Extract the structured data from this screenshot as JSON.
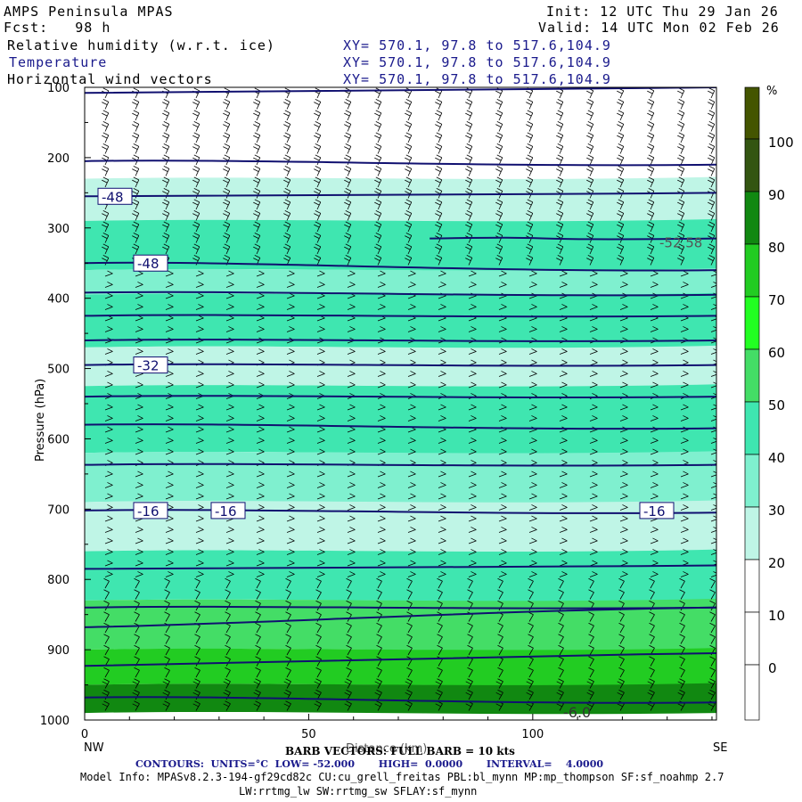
{
  "header": {
    "model": "AMPS Peninsula MPAS",
    "init": "Init: 12 UTC Thu 29 Jan 26",
    "fcst": "Fcst:   98 h",
    "valid": "Valid: 14 UTC Mon 02 Feb 26",
    "field1": "Relative humidity (w.r.t. ice)",
    "field2": "Temperature",
    "field3": "Horizontal wind vectors",
    "xy1": "XY= 570.1, 97.8 to 517.6,104.9",
    "xy2": "XY= 570.1, 97.8 to 517.6,104.9",
    "xy3": "XY= 570.1, 97.8 to 517.6,104.9"
  },
  "footer": {
    "barb": "BARB VECTORS: FULL BARB = 10 kts",
    "xlabel_overlap": "Distance (km)",
    "contours": "CONTOURS:  UNITS=°C  LOW= -52.000       HIGH=  0.0000       INTERVAL=    4.0000",
    "model_info": "Model Info: MPASv8.2.3-194-gf29cd82c CU:cu_grell_freitas PBL:bl_mynn MP:mp_thompson SF:sf_noahmp 2.7",
    "model_info2": "LW:rrtmg_lw SW:rrtmg_sw SFLAY:sf_mynn",
    "left_end": "NW",
    "right_end": "SE"
  },
  "chart_data": {
    "type": "heatmap",
    "ylabel": "Pressure (hPa)",
    "xlabel": "Distance (km)",
    "xlim": [
      0,
      141
    ],
    "ylim": [
      1000,
      100
    ],
    "xticks": [
      0,
      50,
      100
    ],
    "yticks": [
      100,
      200,
      300,
      400,
      500,
      600,
      700,
      800,
      900,
      1000
    ],
    "colorbar": {
      "unit": "%",
      "levels": [
        0,
        10,
        20,
        30,
        40,
        50,
        60,
        70,
        80,
        90,
        100
      ],
      "colors": [
        "#ffffff",
        "#ffffff",
        "#ffffff",
        "#bff5e6",
        "#7ff0cf",
        "#3fe6b0",
        "#44dd66",
        "#22ff22",
        "#22cc22",
        "#118811",
        "#335511",
        "#445500"
      ]
    },
    "rh_layers": [
      {
        "p_top": 100,
        "p_bot": 230,
        "rh": 15
      },
      {
        "p_top": 230,
        "p_bot": 290,
        "rh": 25
      },
      {
        "p_top": 290,
        "p_bot": 360,
        "rh": 48
      },
      {
        "p_top": 360,
        "p_bot": 395,
        "rh": 35
      },
      {
        "p_top": 395,
        "p_bot": 470,
        "rh": 45
      },
      {
        "p_top": 470,
        "p_bot": 525,
        "rh": 28
      },
      {
        "p_top": 525,
        "p_bot": 620,
        "rh": 48
      },
      {
        "p_top": 620,
        "p_bot": 690,
        "rh": 32
      },
      {
        "p_top": 690,
        "p_bot": 760,
        "rh": 22
      },
      {
        "p_top": 760,
        "p_bot": 830,
        "rh": 40
      },
      {
        "p_top": 830,
        "p_bot": 900,
        "rh": 55
      },
      {
        "p_top": 900,
        "p_bot": 950,
        "rh": 70
      },
      {
        "p_top": 950,
        "p_bot": 990,
        "rh": 85
      }
    ],
    "temperature_contours": [
      {
        "label": "",
        "p_left": 108,
        "p_right": 100
      },
      {
        "label": "",
        "p_left": 205,
        "p_right": 210
      },
      {
        "label": "-48",
        "p_left": 255,
        "p_right": 250
      },
      {
        "label": "-52.58",
        "p_left": 315,
        "p_right": 315,
        "x_start": 77
      },
      {
        "label": "-48",
        "p_left": 350,
        "p_right": 360
      },
      {
        "label": "",
        "p_left": 392,
        "p_right": 395
      },
      {
        "label": "",
        "p_left": 425,
        "p_right": 425
      },
      {
        "label": "",
        "p_left": 460,
        "p_right": 460
      },
      {
        "label": "-32",
        "p_left": 495,
        "p_right": 495
      },
      {
        "label": "",
        "p_left": 540,
        "p_right": 540
      },
      {
        "label": "",
        "p_left": 580,
        "p_right": 585
      },
      {
        "label": "",
        "p_left": 637,
        "p_right": 637
      },
      {
        "label": "-16",
        "p_left": 702,
        "p_right": 705
      },
      {
        "label": "",
        "p_left": 785,
        "p_right": 780
      },
      {
        "label": "",
        "p_left": 840,
        "p_right": 840
      },
      {
        "label": "",
        "p_left": 868,
        "p_right": 840
      },
      {
        "label": "",
        "p_left": 923,
        "p_right": 905
      },
      {
        "label": "-6.0",
        "p_left": 968,
        "p_right": 975
      }
    ],
    "contour_labels": [
      "-48",
      "-48",
      "-32",
      "-16",
      "-16",
      "-16",
      "-52.58",
      "-6.0"
    ]
  }
}
